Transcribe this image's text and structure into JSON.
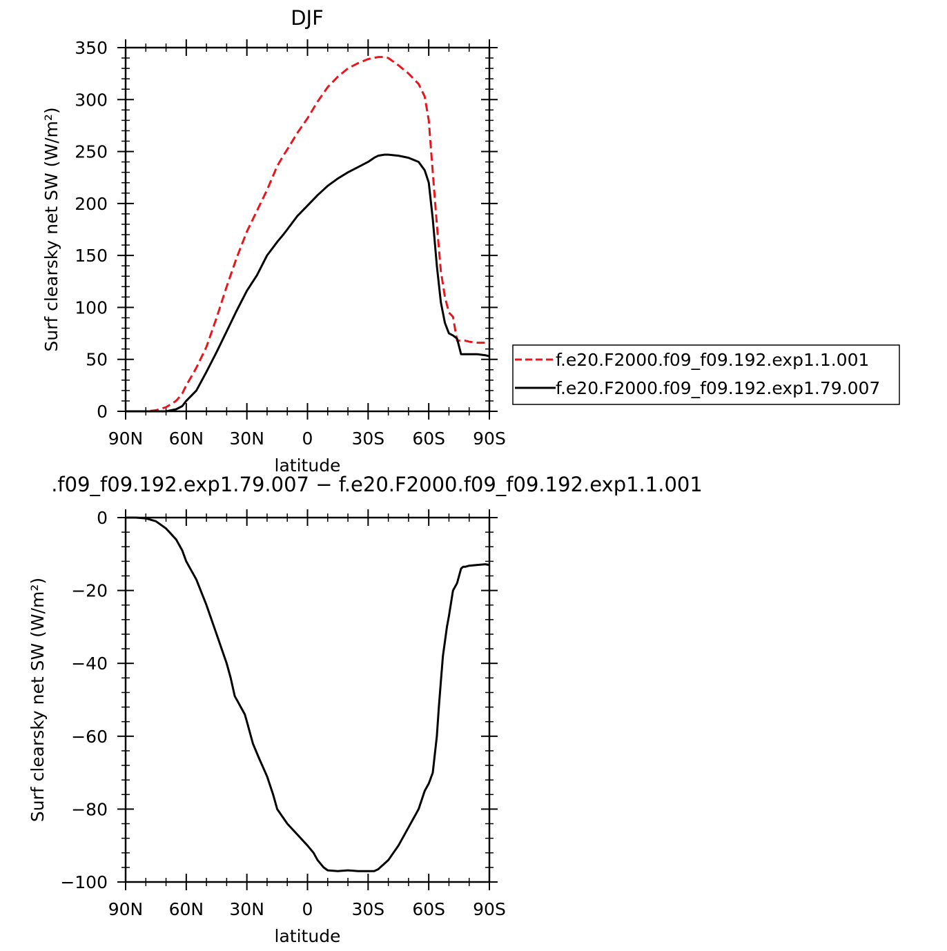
{
  "chart_data": [
    {
      "type": "line",
      "title": "DJF",
      "xlabel": "latitude",
      "ylabel": "Surf clearsky net SW (W/m²)",
      "xlim": [
        90,
        -90
      ],
      "ylim": [
        0,
        350
      ],
      "x_ticks": [
        {
          "value": 90,
          "label": "90N"
        },
        {
          "value": 60,
          "label": "60N"
        },
        {
          "value": 30,
          "label": "30N"
        },
        {
          "value": 0,
          "label": "0"
        },
        {
          "value": -30,
          "label": "30S"
        },
        {
          "value": -60,
          "label": "60S"
        },
        {
          "value": -90,
          "label": "90S"
        }
      ],
      "y_ticks": [
        0,
        50,
        100,
        150,
        200,
        250,
        300,
        350
      ],
      "legend": {
        "placement": "right"
      },
      "series": [
        {
          "name": "f.e20.F2000.f09_f09.192.exp1.1.001",
          "color": "#e8151b",
          "dash": "dashed",
          "x": [
            90,
            80,
            75,
            70,
            65,
            62,
            60,
            57,
            55,
            50,
            45,
            40,
            35,
            30,
            25,
            20,
            15,
            12,
            10,
            5,
            0,
            -5,
            -10,
            -15,
            -20,
            -25,
            -30,
            -35,
            -38,
            -40,
            -45,
            -50,
            -55,
            -58,
            -60,
            -62,
            -64,
            -66,
            -68,
            -70,
            -72,
            -74,
            -76,
            -78,
            -80,
            -84,
            -88,
            -90
          ],
          "y": [
            0,
            0,
            1,
            4,
            10,
            17,
            25,
            35,
            42,
            62,
            90,
            120,
            148,
            173,
            193,
            213,
            236,
            246,
            252,
            268,
            282,
            298,
            312,
            322,
            330,
            335,
            339,
            341,
            341,
            340,
            333,
            325,
            315,
            303,
            280,
            230,
            180,
            135,
            110,
            95,
            91,
            68,
            68,
            68,
            67,
            66,
            66,
            66
          ]
        },
        {
          "name": "f.e20.F2000.f09_f09.192.exp1.79.007",
          "color": "#000000",
          "dash": "solid",
          "x": [
            90,
            80,
            70,
            65,
            62,
            60,
            57,
            55,
            50,
            45,
            40,
            35,
            30,
            25,
            20,
            15,
            12,
            10,
            5,
            0,
            -5,
            -10,
            -15,
            -20,
            -25,
            -30,
            -33,
            -35,
            -38,
            -40,
            -45,
            -50,
            -55,
            -58,
            -60,
            -62,
            -64,
            -66,
            -68,
            -70,
            -72,
            -74,
            -76,
            -78,
            -80,
            -84,
            -88,
            -90
          ],
          "y": [
            0,
            0,
            0,
            2,
            5,
            10,
            16,
            20,
            38,
            57,
            77,
            97,
            116,
            131,
            150,
            163,
            170,
            175,
            188,
            198,
            208,
            217,
            224,
            230,
            235,
            240,
            244,
            246,
            247,
            247,
            246,
            244,
            240,
            232,
            220,
            185,
            140,
            105,
            85,
            75,
            73,
            70,
            55,
            55,
            55,
            55,
            54,
            53
          ]
        }
      ]
    },
    {
      "type": "line",
      "title": ".f09_f09.192.exp1.79.007 − f.e20.F2000.f09_f09.192.exp1.1.001",
      "xlabel": "latitude",
      "ylabel": "Surf clearsky net SW (W/m²)",
      "xlim": [
        90,
        -90
      ],
      "ylim": [
        -100,
        0
      ],
      "x_ticks": [
        {
          "value": 90,
          "label": "90N"
        },
        {
          "value": 60,
          "label": "60N"
        },
        {
          "value": 30,
          "label": "30N"
        },
        {
          "value": 0,
          "label": "0"
        },
        {
          "value": -30,
          "label": "30S"
        },
        {
          "value": -60,
          "label": "60S"
        },
        {
          "value": -90,
          "label": "90S"
        }
      ],
      "y_ticks": [
        {
          "value": 0,
          "label": "0"
        },
        {
          "value": -20,
          "label": "−20"
        },
        {
          "value": -40,
          "label": "−40"
        },
        {
          "value": -60,
          "label": "−60"
        },
        {
          "value": -80,
          "label": "−80"
        },
        {
          "value": -100,
          "label": "−100"
        }
      ],
      "series": [
        {
          "name": "",
          "color": "#000000",
          "dash": "solid",
          "x": [
            90,
            85,
            80,
            75,
            70,
            65,
            62,
            60,
            57,
            55,
            50,
            45,
            40,
            38,
            36,
            34,
            33,
            31,
            30,
            27,
            24,
            20,
            17,
            15,
            10,
            5,
            0,
            -3,
            -5,
            -8,
            -10,
            -15,
            -20,
            -25,
            -30,
            -33,
            -35,
            -40,
            -45,
            -50,
            -55,
            -58,
            -60,
            -62,
            -64,
            -65,
            -66,
            -67,
            -68,
            -69,
            -70,
            -72,
            -74,
            -76,
            -77,
            -78,
            -80,
            -84,
            -88,
            -90
          ],
          "y": [
            0,
            0,
            -0.2,
            -1,
            -3,
            -6,
            -9,
            -12,
            -15,
            -17,
            -24,
            -32,
            -40,
            -44,
            -49,
            -51,
            -52,
            -54,
            -56,
            -62,
            -66,
            -71,
            -76,
            -80,
            -84,
            -87,
            -90,
            -92,
            -94,
            -96,
            -96.8,
            -97,
            -96.8,
            -97,
            -97,
            -97,
            -96.5,
            -94,
            -90,
            -85,
            -80,
            -75,
            -73,
            -70,
            -60,
            -52,
            -45,
            -38,
            -34,
            -30,
            -27,
            -20,
            -18,
            -14,
            -13.5,
            -13.5,
            -13.2,
            -13,
            -12.8,
            -13
          ]
        }
      ]
    }
  ]
}
